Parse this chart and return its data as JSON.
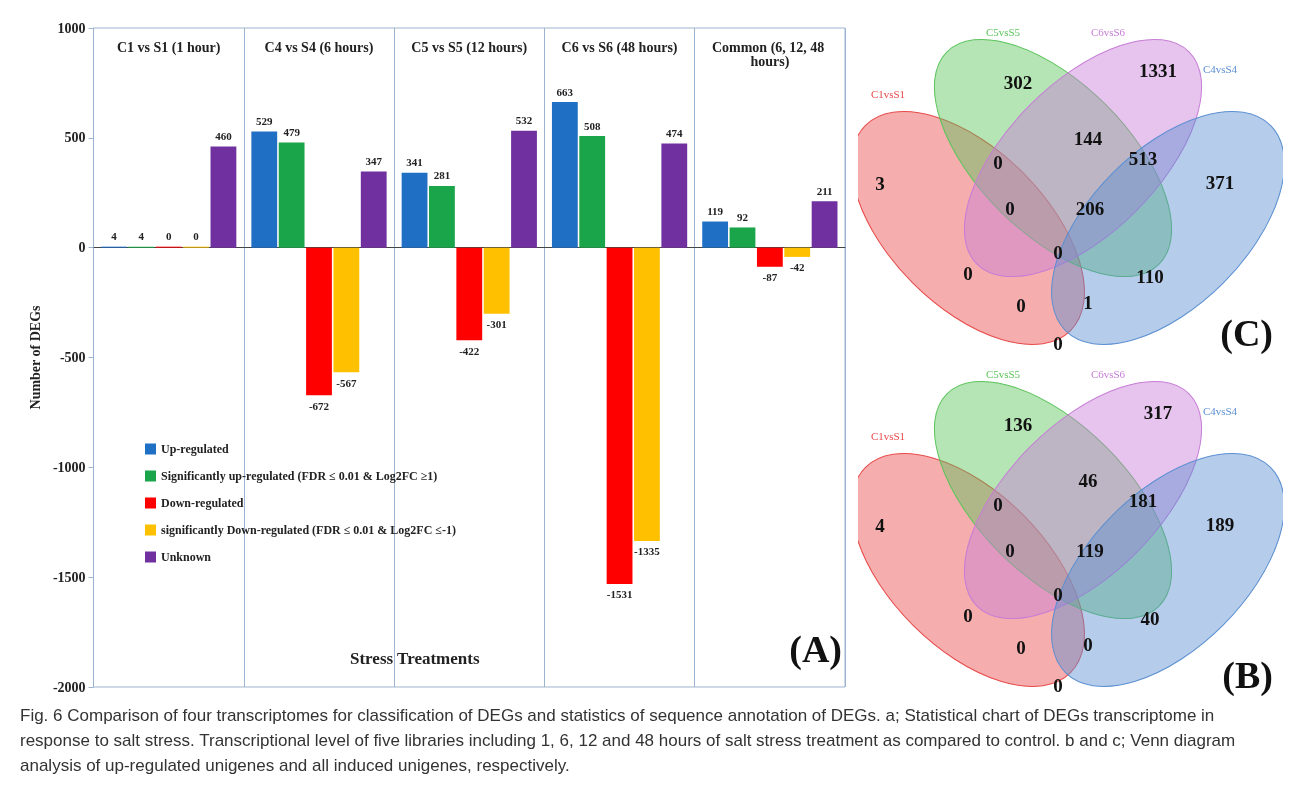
{
  "chart_data": [
    {
      "type": "bar",
      "categories": [
        "C1 vs S1 (1 hour)",
        "C4 vs S4 (6 hours)",
        "C5 vs S5 (12 hours)",
        "C6 vs S6 (48 hours)",
        "Common (6, 12, 48 hours)"
      ],
      "series": [
        {
          "name": "Up-regulated",
          "color": "#1f6fc5",
          "values": [
            4,
            529,
            341,
            663,
            119
          ]
        },
        {
          "name": "Significantly up-regulated (FDR ≤ 0.01 & Log2FC ≥1)",
          "color": "#1aa54a",
          "values": [
            4,
            479,
            281,
            508,
            92
          ]
        },
        {
          "name": "Down-regulated",
          "color": "#ff0000",
          "values": [
            0,
            -672,
            -422,
            -1531,
            -87
          ]
        },
        {
          "name": "significantly Down-regulated (FDR ≤ 0.01 & Log2FC ≤-1)",
          "color": "#ffc000",
          "values": [
            0,
            -567,
            -301,
            -1335,
            -42
          ]
        },
        {
          "name": "Unknown",
          "color": "#7030a0",
          "values": [
            460,
            347,
            532,
            474,
            211
          ]
        }
      ],
      "xlabel": "Stress Treatments",
      "ylabel": "Number of DEGs",
      "ylim": [
        -2000,
        1000
      ],
      "yticks": [
        -2000,
        -1500,
        -1000,
        -500,
        0,
        500,
        1000
      ],
      "data_labels": true,
      "grid": "x",
      "legend": "bottom left",
      "annotations": [
        "(A)",
        "Fig. 6 Comparison of four transcriptomes for classification of DEGs and statistics of sequence annotation of DEGs. a; Statistical chart of DEGs transcriptome in response to salt stress. Transcriptional level of five libraries including 1, 6, 12 and 48 hours of salt stress treatment as compared to control. b and c; Venn diagram analysis of up-regulated unigenes and all induced unigenes, respectively."
      ]
    },
    {
      "type": "other",
      "title": "(C)",
      "categories": [
        "C1vsS1",
        "C5vsS5",
        "C6vsS6",
        "C4vsS4"
      ],
      "colors": [
        "#e84a4a",
        "#5cc45c",
        "#c77dd6",
        "#5b8fd1"
      ],
      "annotations": [
        "3",
        "302",
        "1331",
        "0",
        "144",
        "513",
        "371",
        "0",
        "206",
        "0",
        "0",
        "110",
        "0",
        "1",
        "0"
      ]
    },
    {
      "type": "other",
      "title": "(B)",
      "categories": [
        "C1vsS1",
        "C5vsS5",
        "C6vsS6",
        "C4vsS4"
      ],
      "colors": [
        "#e84a4a",
        "#5cc45c",
        "#c77dd6",
        "#5b8fd1"
      ],
      "annotations": [
        "4",
        "136",
        "317",
        "0",
        "46",
        "181",
        "189",
        "0",
        "119",
        "0",
        "0",
        "40",
        "0",
        "0",
        "0"
      ]
    }
  ]
}
